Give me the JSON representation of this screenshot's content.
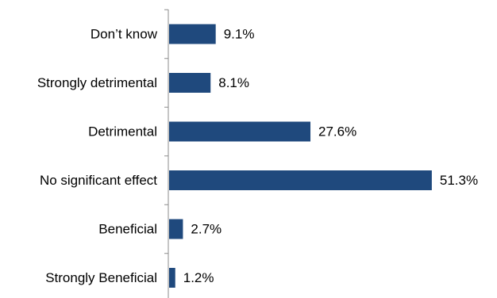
{
  "chart_data": {
    "type": "bar",
    "orientation": "horizontal",
    "categories": [
      "Don’t know",
      "Strongly detrimental",
      "Detrimental",
      "No significant effect",
      "Beneficial",
      "Strongly Beneficial"
    ],
    "values": [
      9.1,
      8.1,
      27.6,
      51.3,
      2.7,
      1.2
    ],
    "value_labels": [
      "9.1%",
      "8.1%",
      "27.6%",
      "51.3%",
      "2.7%",
      "1.2%"
    ],
    "unit": "%",
    "xlim": [
      0,
      55
    ],
    "grid": false,
    "legend": "none",
    "bar_color": "#1f497d"
  }
}
